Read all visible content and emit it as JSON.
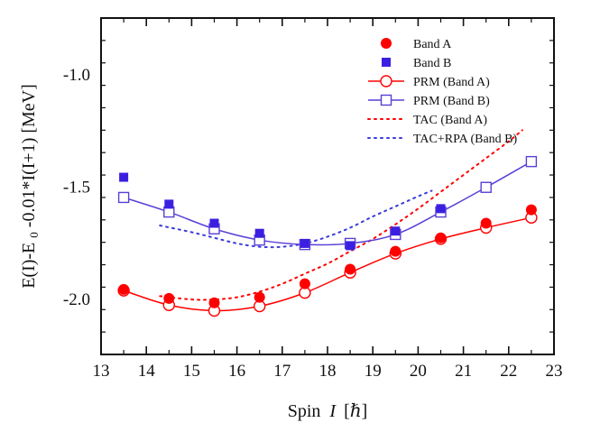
{
  "chart_data": {
    "type": "line",
    "title": "",
    "xlabel": "Spin",
    "xlabel_var": "I",
    "xlabel_unit": "[ℏ]",
    "ylabel": "E(I)-E",
    "ylabel_sub": "0",
    "ylabel_rest": "-0.01*I(I+1) [MeV]",
    "xlim": [
      13,
      23
    ],
    "ylim": [
      -2.25,
      -0.75
    ],
    "xticks": [
      13,
      14,
      15,
      16,
      17,
      18,
      19,
      20,
      21,
      22,
      23
    ],
    "xtick_labels": [
      "13",
      "14",
      "15",
      "16",
      "17",
      "18",
      "19",
      "20",
      "21",
      "22",
      "23"
    ],
    "yticks": [
      -1.0,
      -1.5,
      -2.0
    ],
    "ytick_labels": [
      "-1.0",
      "-1.5",
      "-2.0"
    ],
    "grid": false,
    "legend_position": "top-right",
    "series": [
      {
        "name": "Band A",
        "style": "filled-circle",
        "color": "#ff0000",
        "x": [
          13.5,
          14.5,
          15.5,
          16.5,
          17.5,
          18.5,
          19.5,
          20.5,
          21.5,
          22.5
        ],
        "y": [
          -1.96,
          -2.0,
          -2.02,
          -1.995,
          -1.935,
          -1.87,
          -1.79,
          -1.73,
          -1.665,
          -1.605
        ]
      },
      {
        "name": "Band B",
        "style": "filled-square",
        "color": "#3b1fe0",
        "x": [
          13.5,
          14.5,
          15.5,
          16.5,
          17.5,
          18.5,
          19.5,
          20.5
        ],
        "y": [
          -1.46,
          -1.58,
          -1.665,
          -1.71,
          -1.755,
          -1.765,
          -1.7,
          -1.6
        ]
      },
      {
        "name": "PRM (Band A)",
        "style": "line-open-circle",
        "color": "#ff0000",
        "x": [
          13.5,
          14.5,
          15.5,
          16.5,
          17.5,
          18.5,
          19.5,
          20.5,
          21.5,
          22.5
        ],
        "y": [
          -1.965,
          -2.03,
          -2.055,
          -2.035,
          -1.975,
          -1.885,
          -1.8,
          -1.735,
          -1.685,
          -1.64
        ]
      },
      {
        "name": "PRM (Band B)",
        "style": "line-open-square",
        "color": "#5a3fd6",
        "x": [
          13.5,
          14.5,
          15.5,
          16.5,
          17.5,
          18.5,
          19.5,
          20.5,
          21.5,
          22.5
        ],
        "y": [
          -1.55,
          -1.615,
          -1.69,
          -1.74,
          -1.76,
          -1.755,
          -1.715,
          -1.615,
          -1.505,
          -1.39
        ]
      },
      {
        "name": "TAC (Band A)",
        "style": "dotted",
        "color": "#ff0000",
        "x": [
          14.3,
          15.0,
          15.5,
          16.0,
          16.5,
          17.0,
          17.5,
          18.0,
          18.5,
          19.0,
          19.5,
          20.0,
          20.5,
          21.0,
          21.5,
          22.0,
          22.3
        ],
        "y": [
          -1.99,
          -2.005,
          -2.005,
          -1.995,
          -1.97,
          -1.935,
          -1.89,
          -1.845,
          -1.79,
          -1.735,
          -1.67,
          -1.6,
          -1.525,
          -1.45,
          -1.375,
          -1.3,
          -1.25
        ]
      },
      {
        "name": "TAC+RPA (Band B)",
        "style": "dotted",
        "color": "#3b3bdb",
        "x": [
          14.3,
          15.0,
          15.5,
          16.0,
          16.5,
          17.0,
          17.5,
          18.0,
          18.5,
          19.0,
          19.5,
          20.0,
          20.3
        ],
        "y": [
          -1.675,
          -1.705,
          -1.73,
          -1.755,
          -1.77,
          -1.77,
          -1.755,
          -1.725,
          -1.685,
          -1.635,
          -1.59,
          -1.545,
          -1.52
        ]
      }
    ]
  }
}
